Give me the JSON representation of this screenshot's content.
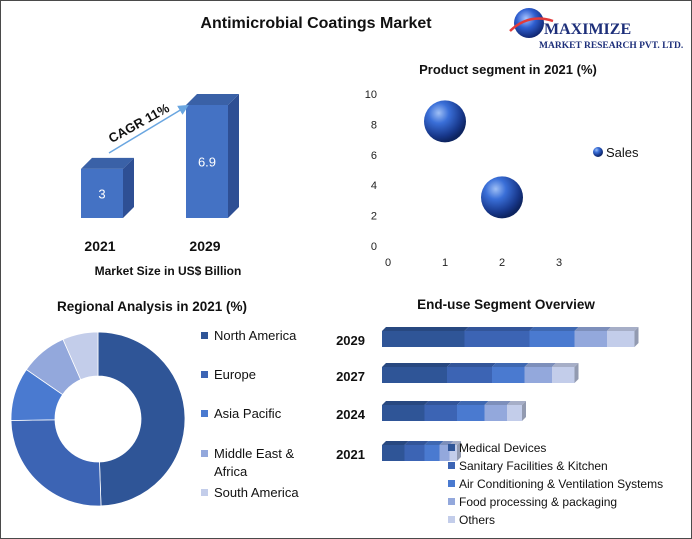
{
  "logo": {
    "brand": "MAXIMIZE",
    "tagline": "MARKET RESEARCH PVT. LTD."
  },
  "colors": {
    "bar_front": "#4472c4",
    "bar_side": "#2e4f94",
    "dark_blue": "#2f5597",
    "legend_blues": [
      "#2f5597",
      "#3c64b4",
      "#4a7ad0",
      "#93a8dc",
      "#c3cdea"
    ]
  },
  "chart_data": [
    {
      "type": "bar",
      "title": "Antimicrobial Coatings Market",
      "categories": [
        "2021",
        "2029"
      ],
      "values": [
        3,
        6.9
      ],
      "value_labels": [
        "3",
        "6.9"
      ],
      "xlabel": "Market Size in US$ Billion",
      "annotation": "CAGR 11%"
    },
    {
      "type": "scatter",
      "title": "Product segment in 2021 (%)",
      "x": [
        1,
        2
      ],
      "y": [
        8.2,
        3.2
      ],
      "series": [
        {
          "name": "Sales"
        }
      ],
      "xlim": [
        0,
        3
      ],
      "ylim": [
        0,
        10
      ],
      "x_ticks": [
        "0",
        "1",
        "2",
        "3"
      ],
      "y_ticks": [
        "0",
        "2",
        "4",
        "6",
        "8",
        "10"
      ],
      "legend_position": "right"
    },
    {
      "type": "pie",
      "title": "Regional Analysis in 2021 (%)",
      "labels": [
        "North America",
        "Europe",
        "Asia Pacific",
        "Middle East & Africa",
        "South America"
      ],
      "legend_lines": [
        [
          "North America"
        ],
        [
          "Europe"
        ],
        [
          "Asia Pacific"
        ],
        [
          "Middle East &",
          "Africa"
        ],
        [
          "South America"
        ]
      ],
      "values": [
        45,
        23,
        9,
        8,
        6
      ],
      "colors": [
        "#2f5597",
        "#3c64b4",
        "#4a7ad0",
        "#93a8dc",
        "#c3cdea"
      ],
      "legend_position": "right"
    },
    {
      "type": "bar",
      "orientation": "horizontal-stacked",
      "title": "End-use Segment Overview",
      "categories": [
        "2029",
        "2027",
        "2024",
        "2021"
      ],
      "series": [
        {
          "name": "Medical Devices",
          "values": [
            33,
            26,
            17,
            9
          ]
        },
        {
          "name": "Sanitary Facilities & Kitchen",
          "values": [
            26,
            18,
            13,
            8
          ]
        },
        {
          "name": "Air Conditioning & Ventilation Systems",
          "values": [
            18,
            13,
            11,
            6
          ]
        },
        {
          "name": "Food processing & packaging",
          "values": [
            13,
            11,
            9,
            4
          ]
        },
        {
          "name": "Others",
          "values": [
            11,
            9,
            6,
            3
          ]
        }
      ],
      "legend_position": "bottom-right"
    }
  ]
}
